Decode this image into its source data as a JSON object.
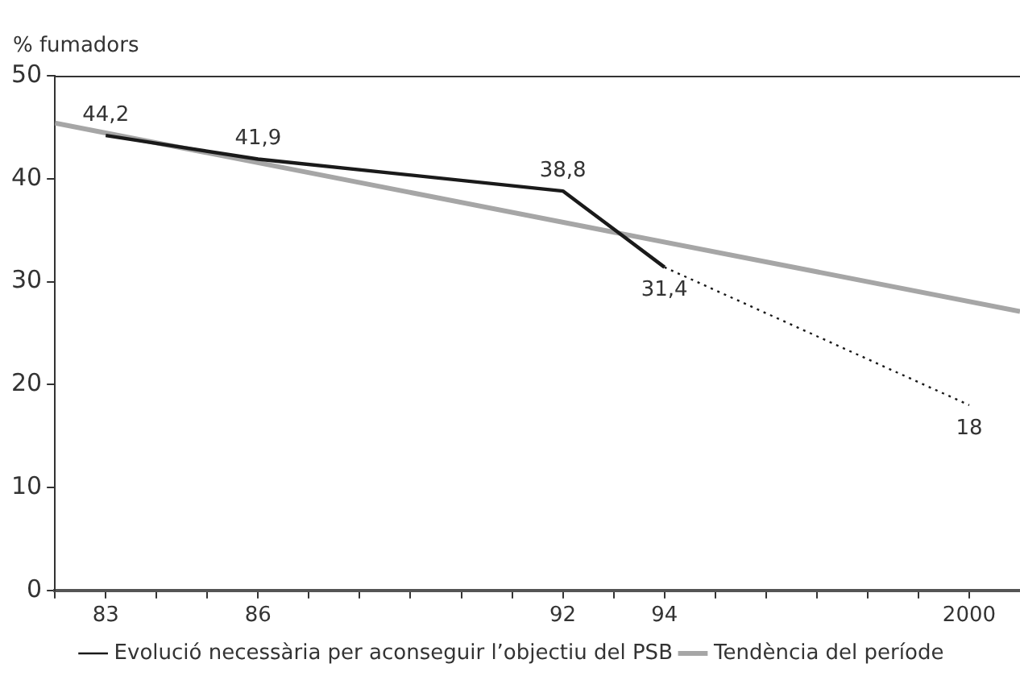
{
  "chart_data": {
    "type": "line",
    "ylabel": "% fumadors",
    "xlim": [
      1982,
      2001
    ],
    "xticks": [
      {
        "value": 1982,
        "label": null
      },
      {
        "value": 1983,
        "label": "83"
      },
      {
        "value": 1984,
        "label": null
      },
      {
        "value": 1985,
        "label": null
      },
      {
        "value": 1986,
        "label": "86"
      },
      {
        "value": 1987,
        "label": null
      },
      {
        "value": 1988,
        "label": null
      },
      {
        "value": 1989,
        "label": null
      },
      {
        "value": 1990,
        "label": null
      },
      {
        "value": 1991,
        "label": null
      },
      {
        "value": 1992,
        "label": "92"
      },
      {
        "value": 1993,
        "label": null
      },
      {
        "value": 1994,
        "label": "94"
      },
      {
        "value": 1995,
        "label": null
      },
      {
        "value": 1996,
        "label": null
      },
      {
        "value": 1997,
        "label": null
      },
      {
        "value": 1998,
        "label": null
      },
      {
        "value": 1999,
        "label": null
      },
      {
        "value": 2000,
        "label": "2000"
      }
    ],
    "ylim": [
      0,
      50
    ],
    "yticks": [
      0,
      10,
      20,
      30,
      40,
      50
    ],
    "grid": false,
    "legend": "bottom",
    "marker": "none",
    "series": [
      {
        "color": "#1a1a1a",
        "x": [
          1983,
          1986,
          1992,
          1994
        ],
        "values": [
          44.2,
          41.9,
          38.8,
          31.4
        ],
        "value_labels": [
          "44,2",
          "41,9",
          "38,8",
          "31,4"
        ],
        "line_style": "solid"
      },
      {
        "name": "Evolució necessària per aconseguir l’objectiu del PSB",
        "color": "#1a1a1a",
        "x": [
          1994,
          2000
        ],
        "values": [
          31.4,
          18
        ],
        "value_labels": [
          null,
          "18"
        ],
        "line_style": "dotted"
      },
      {
        "name": "Tendència del període",
        "color": "#a6a6a6",
        "x": [
          1982,
          2001
        ],
        "values": [
          45.4,
          27.1
        ],
        "line_style": "solid"
      }
    ]
  }
}
